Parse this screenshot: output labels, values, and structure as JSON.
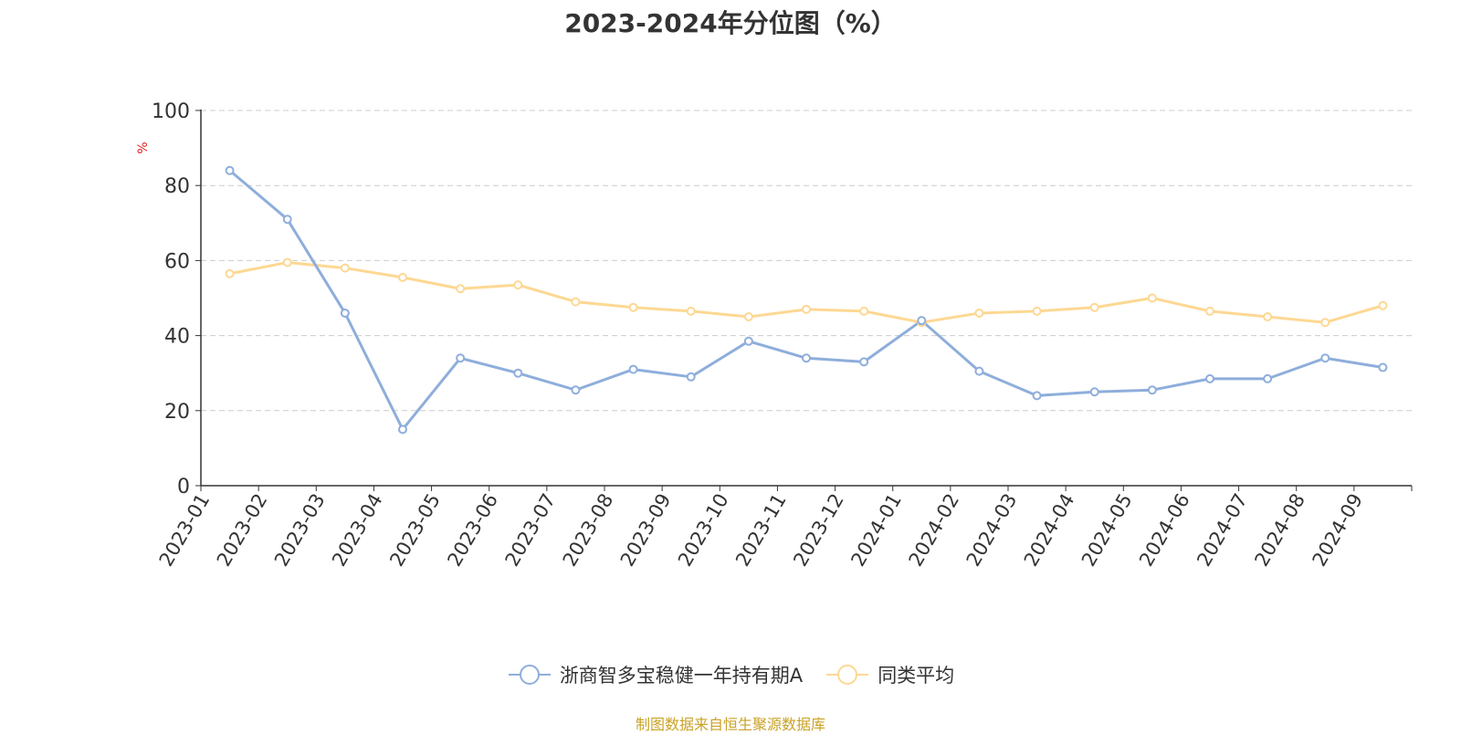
{
  "colors": {
    "series_fund": "#8eaedb",
    "series_avg": "#fdd893",
    "axis": "#333333",
    "grid": "#cccccc",
    "unit": "#e02020",
    "source": "#c9a227"
  },
  "chart_data": {
    "type": "line",
    "title": "2023-2024年分位图（%）",
    "ylabel": "%",
    "ylim": [
      0,
      100
    ],
    "yticks": [
      0,
      20,
      40,
      60,
      80,
      100
    ],
    "grid": true,
    "legend_position": "bottom-center",
    "categories": [
      "2023-01",
      "2023-02",
      "2023-03",
      "2023-04",
      "2023-05",
      "2023-06",
      "2023-07",
      "2023-08",
      "2023-09",
      "2023-10",
      "2023-11",
      "2023-12",
      "2024-01",
      "2024-02",
      "2024-03",
      "2024-04",
      "2024-05",
      "2024-06",
      "2024-07",
      "2024-08",
      "2024-09"
    ],
    "series": [
      {
        "name": "浙商智多宝稳健一年持有期A",
        "color": "#8eaedb",
        "values": [
          84,
          71,
          46,
          15,
          34,
          30,
          25.5,
          31,
          29,
          38.5,
          34,
          33,
          44,
          30.5,
          24,
          25,
          25.5,
          28.5,
          28.5,
          34,
          31.5
        ]
      },
      {
        "name": "同类平均",
        "color": "#fdd893",
        "values": [
          56.5,
          59.5,
          58,
          55.5,
          52.5,
          53.5,
          49,
          47.5,
          46.5,
          45,
          47,
          46.5,
          43.5,
          46,
          46.5,
          47.5,
          50,
          46.5,
          45,
          43.5,
          48
        ]
      }
    ]
  },
  "footer": {
    "source": "制图数据来自恒生聚源数据库"
  }
}
